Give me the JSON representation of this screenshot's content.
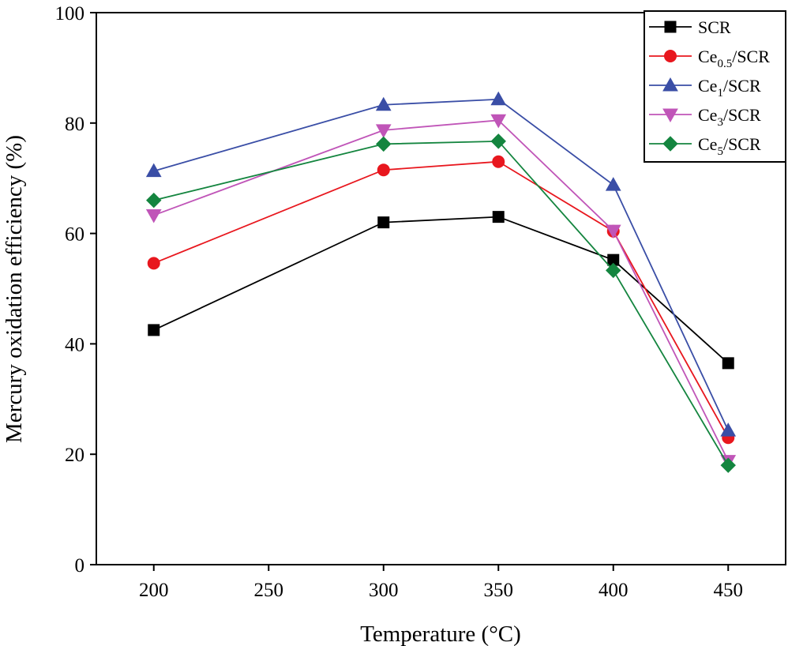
{
  "chart_data": {
    "type": "line",
    "title": "",
    "xlabel": "Temperature (°C)",
    "ylabel": "Mercury oxidation efficiency (%)",
    "xlim": [
      175,
      475
    ],
    "ylim": [
      0,
      100
    ],
    "xticks": [
      200,
      250,
      300,
      350,
      400,
      450
    ],
    "yticks": [
      0,
      20,
      40,
      60,
      80,
      100
    ],
    "legend_position": "top-right",
    "series": [
      {
        "name": "SCR",
        "label_base": "SCR",
        "label_sub": "",
        "label_rest": "",
        "color": "#000000",
        "marker": "square",
        "x": [
          200,
          300,
          350,
          400,
          450
        ],
        "values": [
          42.5,
          62.0,
          63.0,
          55.2,
          36.5
        ]
      },
      {
        "name": "Ce0.5/SCR",
        "label_base": "Ce",
        "label_sub": "0.5",
        "label_rest": "/SCR",
        "color": "#e8171e",
        "marker": "circle",
        "x": [
          200,
          300,
          350,
          400,
          450
        ],
        "values": [
          54.6,
          71.5,
          73.0,
          60.4,
          23.0
        ]
      },
      {
        "name": "Ce1/SCR",
        "label_base": "Ce",
        "label_sub": "1",
        "label_rest": "/SCR",
        "color": "#3a4ea6",
        "marker": "triangle-up",
        "x": [
          200,
          300,
          350,
          400,
          450
        ],
        "values": [
          71.3,
          83.3,
          84.3,
          68.8,
          24.3
        ]
      },
      {
        "name": "Ce3/SCR",
        "label_base": "Ce",
        "label_sub": "3",
        "label_rest": "/SCR",
        "color": "#c055b8",
        "marker": "triangle-down",
        "x": [
          200,
          300,
          350,
          400,
          450
        ],
        "values": [
          63.3,
          78.7,
          80.5,
          60.5,
          18.8
        ]
      },
      {
        "name": "Ce5/SCR",
        "label_base": "Ce",
        "label_sub": "5",
        "label_rest": "/SCR",
        "color": "#14853f",
        "marker": "diamond",
        "x": [
          200,
          300,
          350,
          400,
          450
        ],
        "values": [
          66.0,
          76.2,
          76.7,
          53.3,
          18.0
        ]
      }
    ]
  }
}
